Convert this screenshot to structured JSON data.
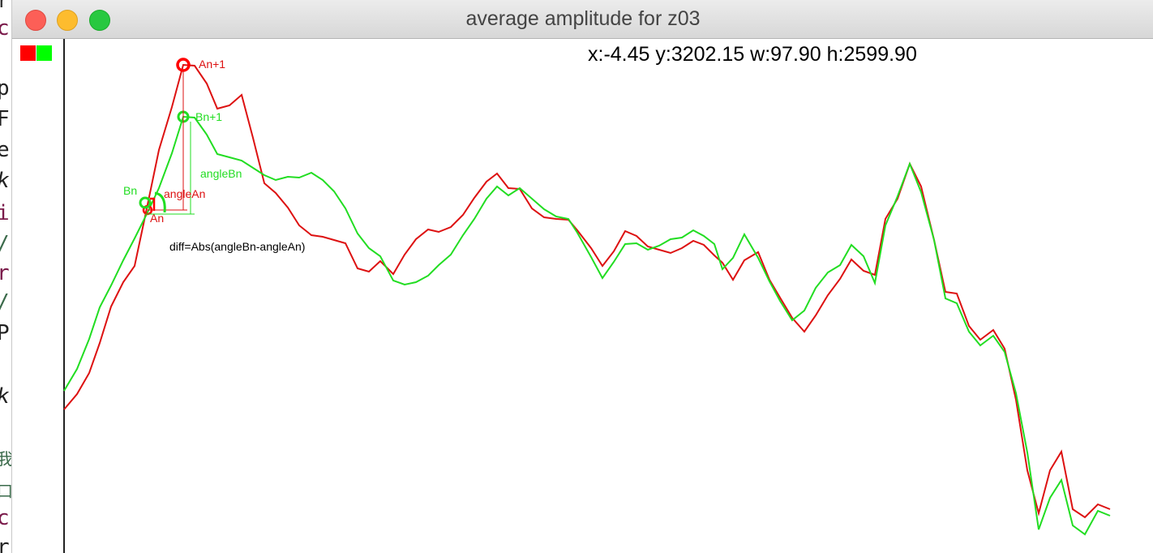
{
  "window": {
    "title": "average amplitude for z03"
  },
  "readout": "x:-4.45 y:3202.15 w:97.90 h:2599.90",
  "colors": {
    "series_a": "#dd1111",
    "series_b": "#22dd22",
    "swatch_a": "#ff0000",
    "swatch_b": "#00ff00"
  },
  "annotations": {
    "an1": "An+1",
    "bn1": "Bn+1",
    "angle_b": "angleBn",
    "angle_a": "angleAn",
    "bn": "Bn",
    "an": "An",
    "diff": "diff=Abs(angleBn-angleAn)"
  },
  "background_code_fragments": [
    "r",
    "c",
    "p",
    "Fr",
    "e.",
    "k",
    "i",
    "/",
    "r",
    "/",
    "P",
    "k",
    "我",
    "口",
    "c",
    "r"
  ]
}
